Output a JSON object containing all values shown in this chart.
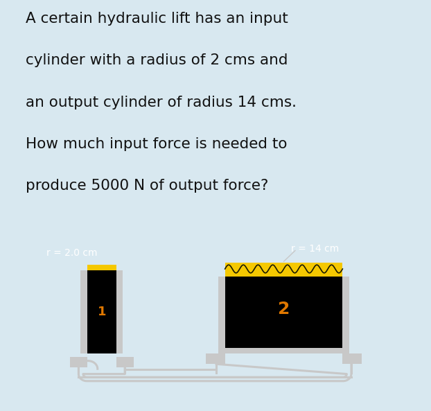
{
  "bg_color": "#d8e8f0",
  "text_lines": [
    "A certain hydraulic lift has an input",
    "cylinder with a radius of 2 cms and",
    "an output cylinder of radius 14 cms.",
    "How much input force is needed to",
    "produce 5000 N of output force?"
  ],
  "text_color": "#111111",
  "text_fontsize": 15.5,
  "diagram_bg": "#000000",
  "small_cyl_label": "r = 2.0 cm",
  "large_cyl_label": "r = 14 cm",
  "label_color": "#ffffff",
  "label_fontsize": 10,
  "outline_color": "#c8c8c8",
  "yellow_color": "#f5c800",
  "orange_color": "#e07800",
  "number1": "1",
  "number2": "2"
}
